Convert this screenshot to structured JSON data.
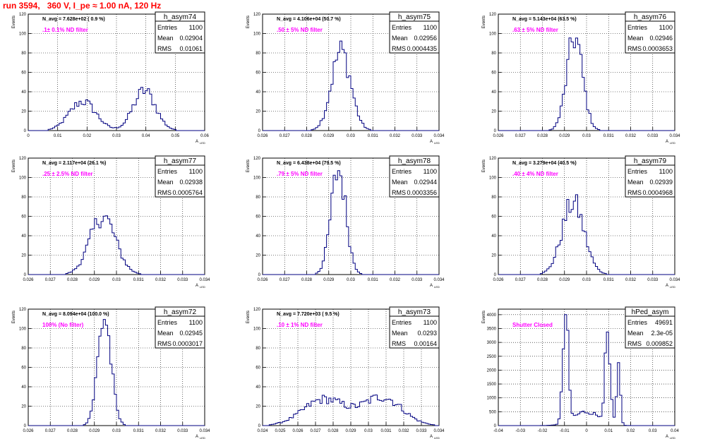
{
  "page": {
    "title": "run 3594,   360 V, I_pe ≈ 1.00 nA, 120 Hz"
  },
  "stat_labels": {
    "entries": "Entries",
    "mean": "Mean",
    "rms": "RMS"
  },
  "ylabel": "Events",
  "xlabel": "A",
  "xlabel_sub": "LED",
  "colors": {
    "histogram": "#000080",
    "annotation": "#ff00ff",
    "title": "#ff0000",
    "grid": "#000000"
  },
  "chart_data": [
    {
      "type": "bar",
      "name": "h_asym74",
      "entries": "1100",
      "mean": "0.02904",
      "rms": "0.01061",
      "navg": "N_avg = 7.628e+02 ( 0.9 %)",
      "annotation": ".1± 0.1% ND filter",
      "xlim": [
        0,
        0.06
      ],
      "xticks": [
        "0",
        "0.01",
        "0.02",
        "0.03",
        "0.04",
        "0.05",
        "0.06"
      ],
      "ylim": [
        0,
        120
      ],
      "yticks": [
        "0",
        "20",
        "40",
        "60",
        "80",
        "100",
        "120"
      ],
      "components": [
        {
          "mu": 0.0185,
          "sigma": 0.0045,
          "amp": 30
        },
        {
          "mu": 0.0395,
          "sigma": 0.0038,
          "amp": 41
        }
      ]
    },
    {
      "type": "bar",
      "name": "h_asym75",
      "entries": "1100",
      "mean": "0.02956",
      "rms": "0.0004435",
      "navg": "N_avg = 4.106e+04 (50.7 %)",
      "annotation": ".50 ± 5% ND filter",
      "xlim": [
        0.026,
        0.034
      ],
      "xticks": [
        "0.026",
        "0.027",
        "0.028",
        "0.029",
        "0.03",
        "0.031",
        "0.032",
        "0.033",
        "0.034"
      ],
      "ylim": [
        0,
        120
      ],
      "yticks": [
        "0",
        "20",
        "40",
        "60",
        "80",
        "100",
        "120"
      ],
      "components": [
        {
          "mu": 0.02956,
          "sigma": 0.00044,
          "amp": 82
        }
      ]
    },
    {
      "type": "bar",
      "name": "h_asym76",
      "entries": "1100",
      "mean": "0.02946",
      "rms": "0.0003653",
      "navg": "N_avg = 5.143e+04 (63.5 %)",
      "annotation": ".63 ± 5% ND filter",
      "xlim": [
        0.026,
        0.034
      ],
      "xticks": [
        "0.026",
        "0.027",
        "0.028",
        "0.029",
        "0.03",
        "0.031",
        "0.032",
        "0.033",
        "0.034"
      ],
      "ylim": [
        0,
        120
      ],
      "yticks": [
        "0",
        "20",
        "40",
        "60",
        "80",
        "100",
        "120"
      ],
      "components": [
        {
          "mu": 0.02946,
          "sigma": 0.00036,
          "amp": 96
        }
      ]
    },
    {
      "type": "bar",
      "name": "h_asym77",
      "entries": "1100",
      "mean": "0.02938",
      "rms": "0.0005764",
      "navg": "N_avg = 2.117e+04 (26.1 %)",
      "annotation": ".25 ± 2.5% ND filter",
      "xlim": [
        0.026,
        0.034
      ],
      "xticks": [
        "0.026",
        "0.027",
        "0.028",
        "0.029",
        "0.03",
        "0.031",
        "0.032",
        "0.033",
        "0.034"
      ],
      "ylim": [
        0,
        120
      ],
      "yticks": [
        "0",
        "20",
        "40",
        "60",
        "80",
        "100",
        "120"
      ],
      "components": [
        {
          "mu": 0.02938,
          "sigma": 0.00058,
          "amp": 60
        }
      ]
    },
    {
      "type": "bar",
      "name": "h_asym78",
      "entries": "1100",
      "mean": "0.02944",
      "rms": "0.0003356",
      "navg": "N_avg = 6.438e+04 (79.5 %)",
      "annotation": ".79 ± 5% ND filter",
      "xlim": [
        0.026,
        0.034
      ],
      "xticks": [
        "0.026",
        "0.027",
        "0.028",
        "0.029",
        "0.03",
        "0.031",
        "0.032",
        "0.033",
        "0.034"
      ],
      "ylim": [
        0,
        120
      ],
      "yticks": [
        "0",
        "20",
        "40",
        "60",
        "80",
        "100",
        "120"
      ],
      "components": [
        {
          "mu": 0.02944,
          "sigma": 0.00034,
          "amp": 108
        }
      ]
    },
    {
      "type": "bar",
      "name": "h_asym79",
      "entries": "1100",
      "mean": "0.02939",
      "rms": "0.0004968",
      "navg": "N_avg = 3.279e+04 (40.5 %)",
      "annotation": ".40 ± 4% ND filter",
      "xlim": [
        0.026,
        0.034
      ],
      "xticks": [
        "0.026",
        "0.027",
        "0.028",
        "0.029",
        "0.03",
        "0.031",
        "0.032",
        "0.033",
        "0.034"
      ],
      "ylim": [
        0,
        120
      ],
      "yticks": [
        "0",
        "20",
        "40",
        "60",
        "80",
        "100",
        "120"
      ],
      "components": [
        {
          "mu": 0.02939,
          "sigma": 0.0005,
          "amp": 74
        }
      ]
    },
    {
      "type": "bar",
      "name": "h_asym72",
      "entries": "1100",
      "mean": "0.02945",
      "rms": "0.0003017",
      "navg": "N_avg = 8.094e+04 (100.0 %)",
      "annotation": "100% (No filter)",
      "xlim": [
        0.026,
        0.034
      ],
      "xticks": [
        "0.026",
        "0.027",
        "0.028",
        "0.029",
        "0.03",
        "0.031",
        "0.032",
        "0.033",
        "0.034"
      ],
      "ylim": [
        0,
        120
      ],
      "yticks": [
        "0",
        "20",
        "40",
        "60",
        "80",
        "100",
        "120"
      ],
      "components": [
        {
          "mu": 0.02945,
          "sigma": 0.0003,
          "amp": 112
        }
      ]
    },
    {
      "type": "bar",
      "name": "h_asym73",
      "entries": "1100",
      "mean": "0.0293",
      "rms": "0.00164",
      "navg": "N_avg = 7.720e+03 ( 9.5 %)",
      "annotation": ".10 ± 1% ND filter",
      "xlim": [
        0.024,
        0.034
      ],
      "xticks": [
        "0.024",
        "0.025",
        "0.026",
        "0.027",
        "0.028",
        "0.029",
        "0.03",
        "0.031",
        "0.032",
        "0.033",
        "0.034"
      ],
      "ylim": [
        0,
        120
      ],
      "yticks": [
        "0",
        "20",
        "40",
        "60",
        "80",
        "100",
        "120"
      ],
      "components": [
        {
          "mu": 0.0275,
          "sigma": 0.0012,
          "amp": 27
        },
        {
          "mu": 0.0308,
          "sigma": 0.0011,
          "amp": 29
        }
      ]
    },
    {
      "type": "bar",
      "name": "hPed_asym",
      "entries": "49691",
      "mean": "2.3e-05",
      "rms": "0.009852",
      "navg": "",
      "annotation": "Shutter Closed",
      "xlim": [
        -0.04,
        0.04
      ],
      "xticks": [
        "-0.04",
        "-0.03",
        "-0.02",
        "-0.01",
        "0",
        "0.01",
        "0.02",
        "0.03",
        "0.04"
      ],
      "ylim": [
        0,
        4200
      ],
      "yticks": [
        "0",
        "500",
        "1000",
        "1500",
        "2000",
        "2500",
        "3000",
        "3500",
        "4000"
      ],
      "components": [
        {
          "mu": -0.0095,
          "sigma": 0.0012,
          "amp": 3900
        },
        {
          "mu": 0.0095,
          "sigma": 0.0012,
          "amp": 2900
        },
        {
          "mu": 0.0145,
          "sigma": 0.0008,
          "amp": 2000
        },
        {
          "mu": 0,
          "sigma": 0.006,
          "amp": 500
        }
      ]
    }
  ]
}
